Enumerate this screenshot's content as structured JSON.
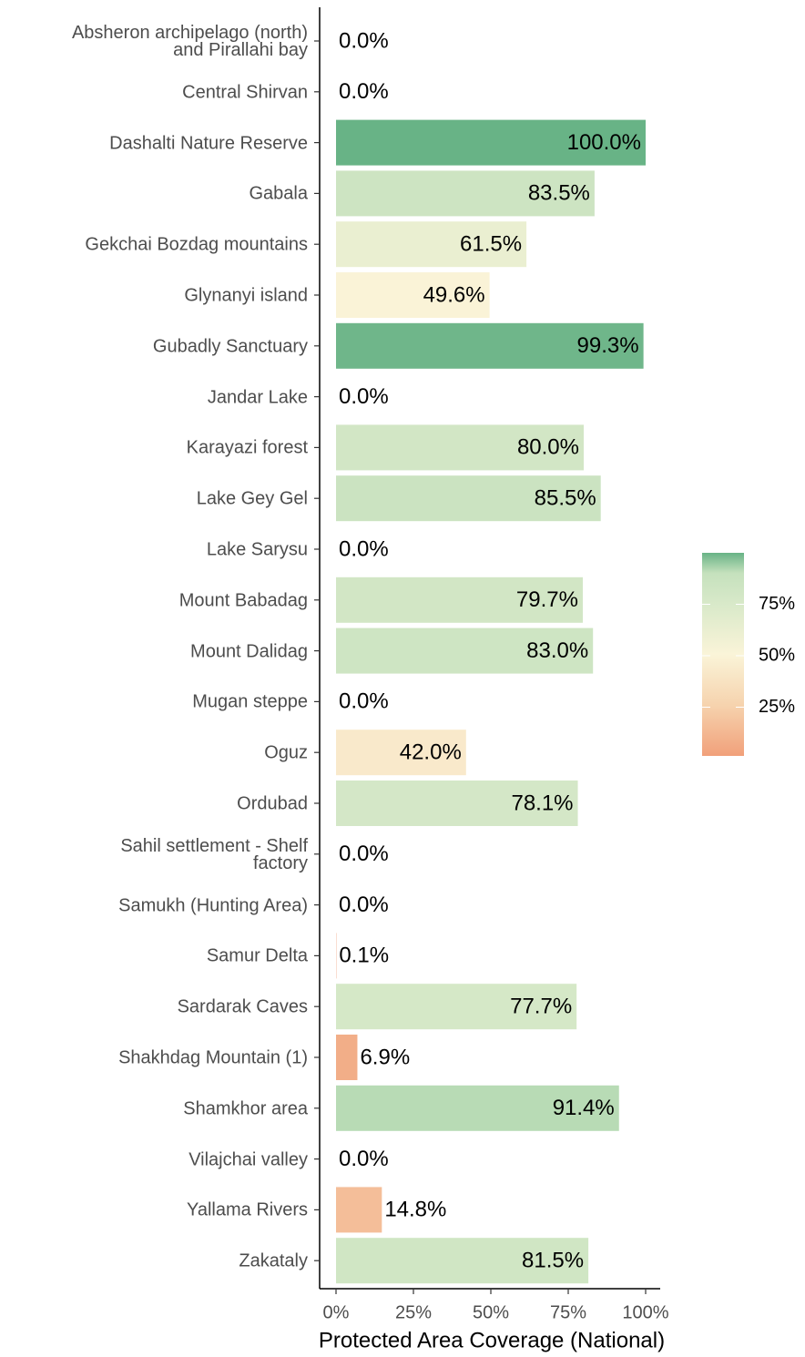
{
  "chart_data": {
    "type": "bar",
    "orientation": "horizontal",
    "xlabel": "Protected Area Coverage (National)",
    "categories": [
      "Absheron archipelago (north)\nand Pirallahi bay",
      "Central Shirvan",
      "Dashalti Nature Reserve",
      "Gabala",
      "Gekchai Bozdag mountains",
      "Glynanyi island",
      "Gubadly Sanctuary",
      "Jandar Lake",
      "Karayazi forest",
      "Lake Gey Gel",
      "Lake Sarysu",
      "Mount Babadag",
      "Mount Dalidag",
      "Mugan steppe",
      "Oguz",
      "Ordubad",
      "Sahil settlement - Shelf\nfactory",
      "Samukh (Hunting Area)",
      "Samur Delta",
      "Sardarak Caves",
      "Shakhdag Mountain (1)",
      "Shamkhor area",
      "Vilajchai valley",
      "Yallama Rivers",
      "Zakataly"
    ],
    "values": [
      0,
      0,
      100,
      83.5,
      61.5,
      49.6,
      99.3,
      0,
      80,
      85.5,
      0,
      79.7,
      83,
      0,
      42,
      78.1,
      0,
      0,
      0.1,
      77.7,
      6.9,
      91.4,
      0,
      14.8,
      81.5
    ],
    "value_labels": [
      "0.0%",
      "0.0%",
      "100.0%",
      "83.5%",
      "61.5%",
      "49.6%",
      "99.3%",
      "0.0%",
      "80.0%",
      "85.5%",
      "0.0%",
      "79.7%",
      "83.0%",
      "0.0%",
      "42.0%",
      "78.1%",
      "0.0%",
      "0.0%",
      "0.1%",
      "77.7%",
      "6.9%",
      "91.4%",
      "0.0%",
      "14.8%",
      "81.5%"
    ],
    "xlim": [
      0,
      100
    ],
    "xticks": [
      {
        "value": 0,
        "label": "0%"
      },
      {
        "value": 25,
        "label": "25%"
      },
      {
        "value": 50,
        "label": "50%"
      },
      {
        "value": 75,
        "label": "75%"
      },
      {
        "value": 100,
        "label": "100%"
      }
    ],
    "color_scale": {
      "lim": [
        0,
        100
      ],
      "stops": [
        {
          "value": 0,
          "color": "#f1a07a"
        },
        {
          "value": 25,
          "color": "#f6d3ae"
        },
        {
          "value": 50,
          "color": "#faf4d8"
        },
        {
          "value": 75,
          "color": "#d8e9c9"
        },
        {
          "value": 90,
          "color": "#c5e1bd"
        },
        {
          "value": 100,
          "color": "#68b386"
        }
      ],
      "ticks": [
        {
          "value": 25,
          "label": "25%"
        },
        {
          "value": 50,
          "label": "50%"
        },
        {
          "value": 75,
          "label": "75%"
        }
      ]
    }
  }
}
